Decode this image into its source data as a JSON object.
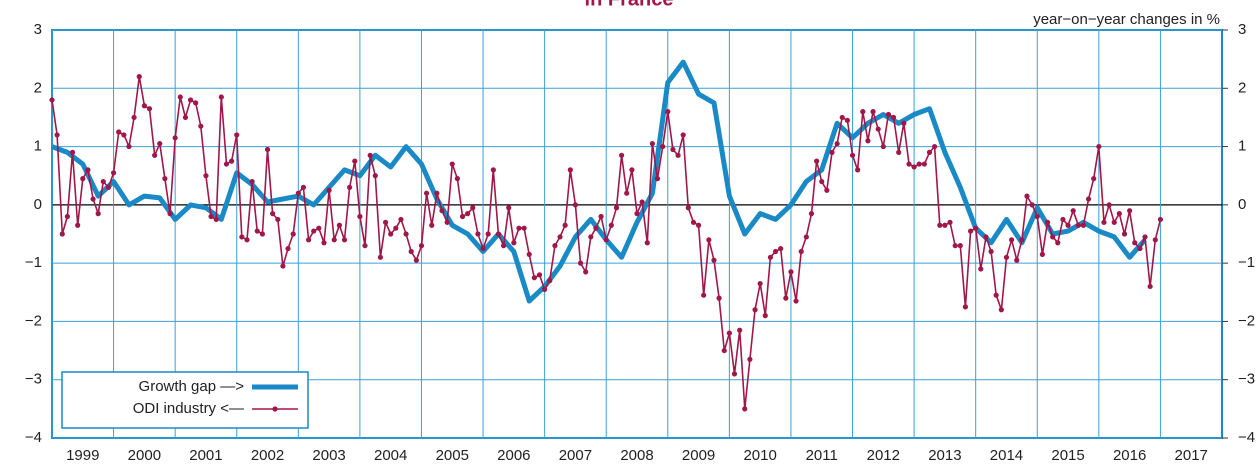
{
  "chart_data": {
    "type": "line",
    "title": "in France",
    "annotation": "year−on−year changes in %",
    "xlim": [
      1999,
      2018
    ],
    "xticks": [
      1999,
      2000,
      2001,
      2002,
      2003,
      2004,
      2005,
      2006,
      2007,
      2008,
      2009,
      2010,
      2011,
      2012,
      2013,
      2014,
      2015,
      2016,
      2017
    ],
    "ylim": [
      -4,
      3
    ],
    "yticks": [
      {
        "value": -4,
        "label": "−4"
      },
      {
        "value": -3,
        "label": "−3"
      },
      {
        "value": -2,
        "label": "−2"
      },
      {
        "value": -1,
        "label": "−1"
      },
      0,
      1,
      2,
      3
    ],
    "y2lim": [
      -4,
      3
    ],
    "y2ticks": [
      {
        "value": -4,
        "label": "−4"
      },
      {
        "value": -3,
        "label": "−3"
      },
      {
        "value": -2,
        "label": "−2"
      },
      {
        "value": -1,
        "label": "−1"
      },
      0,
      1,
      2,
      3
    ],
    "grid": true,
    "legend": "lower left",
    "series": [
      {
        "name": "Growth gap —>",
        "color": "#1a8ac6",
        "axis": "y2",
        "markers": false,
        "x": [
          1999,
          1999.25,
          1999.5,
          1999.75,
          2000,
          2000.25,
          2000.5,
          2000.75,
          2001,
          2001.25,
          2001.5,
          2001.75,
          2002,
          2002.25,
          2002.5,
          2002.75,
          2003,
          2003.25,
          2003.5,
          2003.75,
          2004,
          2004.25,
          2004.5,
          2004.75,
          2005,
          2005.25,
          2005.5,
          2005.75,
          2006,
          2006.25,
          2006.5,
          2006.75,
          2007,
          2007.25,
          2007.5,
          2007.75,
          2008,
          2008.25,
          2008.5,
          2008.75,
          2009,
          2009.25,
          2009.5,
          2009.75,
          2010,
          2010.25,
          2010.5,
          2010.75,
          2011,
          2011.25,
          2011.5,
          2011.75,
          2012,
          2012.25,
          2012.5,
          2012.75,
          2013,
          2013.25,
          2013.5,
          2013.75,
          2014,
          2014.25,
          2014.5,
          2014.75,
          2015,
          2015.25,
          2015.5,
          2015.75,
          2016,
          2016.25,
          2016.5,
          2016.75
        ],
        "values": [
          1.0,
          0.9,
          0.7,
          0.15,
          0.4,
          0.0,
          0.15,
          0.12,
          -0.25,
          0.0,
          -0.05,
          -0.25,
          0.55,
          0.35,
          0.05,
          0.1,
          0.15,
          0.0,
          0.3,
          0.6,
          0.5,
          0.85,
          0.65,
          1.0,
          0.7,
          0.1,
          -0.35,
          -0.5,
          -0.8,
          -0.5,
          -0.8,
          -1.65,
          -1.4,
          -1.05,
          -0.55,
          -0.25,
          -0.6,
          -0.9,
          -0.3,
          0.2,
          2.1,
          2.45,
          1.9,
          1.75,
          0.15,
          -0.5,
          -0.15,
          -0.25,
          0.0,
          0.4,
          0.6,
          1.4,
          1.15,
          1.4,
          1.55,
          1.4,
          1.55,
          1.65,
          0.9,
          0.3,
          -0.4,
          -0.65,
          -0.25,
          -0.65,
          -0.05,
          -0.5,
          -0.45,
          -0.3,
          -0.45,
          -0.55,
          -0.9,
          -0.6
        ]
      },
      {
        "name": "ODI industry <—",
        "color": "#a0174a",
        "axis": "y",
        "markers": true,
        "x": [
          1999,
          1999.083,
          1999.167,
          1999.25,
          1999.333,
          1999.417,
          1999.5,
          1999.583,
          1999.667,
          1999.75,
          1999.833,
          1999.917,
          2000,
          2000.083,
          2000.167,
          2000.25,
          2000.333,
          2000.417,
          2000.5,
          2000.583,
          2000.667,
          2000.75,
          2000.833,
          2000.917,
          2001,
          2001.083,
          2001.167,
          2001.25,
          2001.333,
          2001.417,
          2001.5,
          2001.583,
          2001.667,
          2001.75,
          2001.833,
          2001.917,
          2002,
          2002.083,
          2002.167,
          2002.25,
          2002.333,
          2002.417,
          2002.5,
          2002.583,
          2002.667,
          2002.75,
          2002.833,
          2002.917,
          2003,
          2003.083,
          2003.167,
          2003.25,
          2003.333,
          2003.417,
          2003.5,
          2003.583,
          2003.667,
          2003.75,
          2003.833,
          2003.917,
          2004,
          2004.083,
          2004.167,
          2004.25,
          2004.333,
          2004.417,
          2004.5,
          2004.583,
          2004.667,
          2004.75,
          2004.833,
          2004.917,
          2005,
          2005.083,
          2005.167,
          2005.25,
          2005.333,
          2005.417,
          2005.5,
          2005.583,
          2005.667,
          2005.75,
          2005.833,
          2005.917,
          2006,
          2006.083,
          2006.167,
          2006.25,
          2006.333,
          2006.417,
          2006.5,
          2006.583,
          2006.667,
          2006.75,
          2006.833,
          2006.917,
          2007,
          2007.083,
          2007.167,
          2007.25,
          2007.333,
          2007.417,
          2007.5,
          2007.583,
          2007.667,
          2007.75,
          2007.833,
          2007.917,
          2008,
          2008.083,
          2008.167,
          2008.25,
          2008.333,
          2008.417,
          2008.5,
          2008.583,
          2008.667,
          2008.75,
          2008.833,
          2008.917,
          2009,
          2009.083,
          2009.167,
          2009.25,
          2009.333,
          2009.417,
          2009.5,
          2009.583,
          2009.667,
          2009.75,
          2009.833,
          2009.917,
          2010,
          2010.083,
          2010.167,
          2010.25,
          2010.333,
          2010.417,
          2010.5,
          2010.583,
          2010.667,
          2010.75,
          2010.833,
          2010.917,
          2011,
          2011.083,
          2011.167,
          2011.25,
          2011.333,
          2011.417,
          2011.5,
          2011.583,
          2011.667,
          2011.75,
          2011.833,
          2011.917,
          2012,
          2012.083,
          2012.167,
          2012.25,
          2012.333,
          2012.417,
          2012.5,
          2012.583,
          2012.667,
          2012.75,
          2012.833,
          2012.917,
          2013,
          2013.083,
          2013.167,
          2013.25,
          2013.333,
          2013.417,
          2013.5,
          2013.583,
          2013.667,
          2013.75,
          2013.833,
          2013.917,
          2014,
          2014.083,
          2014.167,
          2014.25,
          2014.333,
          2014.417,
          2014.5,
          2014.583,
          2014.667,
          2014.75,
          2014.833,
          2014.917,
          2015,
          2015.083,
          2015.167,
          2015.25,
          2015.333,
          2015.417,
          2015.5,
          2015.583,
          2015.667,
          2015.75,
          2015.833,
          2015.917,
          2016,
          2016.083,
          2016.167,
          2016.25,
          2016.333,
          2016.417,
          2016.5,
          2016.583,
          2016.667,
          2016.75,
          2016.833,
          2016.917,
          2017
        ],
        "values": [
          1.8,
          1.2,
          -0.5,
          -0.2,
          0.9,
          -0.35,
          0.45,
          0.6,
          0.1,
          -0.15,
          0.4,
          0.3,
          0.55,
          1.25,
          1.2,
          1.0,
          1.5,
          2.2,
          1.7,
          1.65,
          0.85,
          1.05,
          0.45,
          -0.15,
          1.15,
          1.85,
          1.5,
          1.8,
          1.75,
          1.35,
          0.5,
          -0.2,
          -0.25,
          1.85,
          0.7,
          0.75,
          1.2,
          -0.55,
          -0.6,
          0.4,
          -0.45,
          -0.5,
          0.95,
          -0.15,
          -0.25,
          -1.05,
          -0.75,
          -0.5,
          0.2,
          0.3,
          -0.6,
          -0.45,
          -0.4,
          -0.65,
          0.25,
          -0.6,
          -0.35,
          -0.6,
          0.3,
          0.75,
          -0.2,
          -0.7,
          0.85,
          0.5,
          -0.9,
          -0.3,
          -0.5,
          -0.4,
          -0.25,
          -0.5,
          -0.8,
          -0.95,
          -0.7,
          0.2,
          -0.35,
          0.2,
          -0.1,
          -0.3,
          0.7,
          0.45,
          -0.2,
          -0.15,
          -0.05,
          -0.5,
          -0.75,
          -0.5,
          0.6,
          -0.5,
          -0.7,
          -0.05,
          -0.65,
          -0.4,
          -0.4,
          -0.85,
          -1.25,
          -1.2,
          -1.45,
          -1.3,
          -0.7,
          -0.55,
          -0.35,
          0.6,
          0.0,
          -1.0,
          -1.15,
          -0.55,
          -0.4,
          -0.2,
          -0.6,
          -0.35,
          -0.05,
          0.85,
          0.2,
          0.6,
          -0.15,
          0.05,
          -0.65,
          1.05,
          0.45,
          1.0,
          1.6,
          0.95,
          0.85,
          1.2,
          -0.05,
          -0.3,
          -0.35,
          -1.55,
          -0.6,
          -0.95,
          -1.6,
          -2.5,
          -2.2,
          -2.9,
          -2.15,
          -3.5,
          -2.65,
          -1.8,
          -1.35,
          -1.9,
          -0.9,
          -0.8,
          -0.75,
          -1.6,
          -1.15,
          -1.65,
          -0.8,
          -0.55,
          -0.15,
          0.75,
          0.4,
          0.25,
          0.9,
          1.05,
          1.5,
          1.45,
          0.85,
          0.6,
          1.6,
          1.1,
          1.6,
          1.3,
          1.0,
          1.55,
          1.5,
          0.9,
          1.4,
          0.7,
          0.65,
          0.7,
          0.7,
          0.9,
          1.0,
          -0.35,
          -0.35,
          -0.3,
          -0.7,
          -0.7,
          -1.75,
          -0.45,
          -0.4,
          -1.1,
          -0.55,
          -0.8,
          -1.55,
          -1.8,
          -0.9,
          -0.6,
          -0.95,
          -0.6,
          0.15,
          0.0,
          -0.2,
          -0.85,
          -0.3,
          -0.55,
          -0.65,
          -0.25,
          -0.35,
          -0.1,
          -0.35,
          -0.35,
          0.1,
          0.45,
          1.0,
          -0.3,
          0.0,
          -0.3,
          -0.15,
          -0.5,
          -0.1,
          -0.65,
          -0.75,
          -0.55,
          -1.4,
          -0.6,
          -0.25
        ]
      }
    ]
  }
}
